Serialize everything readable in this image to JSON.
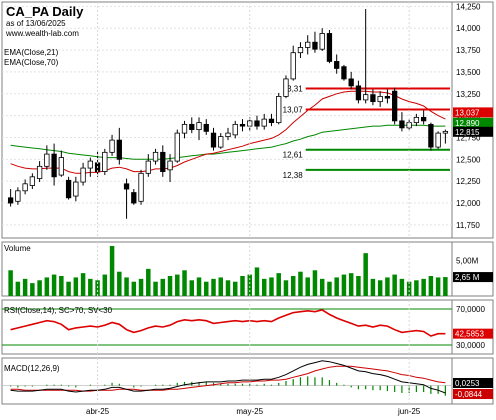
{
  "window": {
    "title": "CA_PA Daily",
    "subtitle": "as of 13/06/2025",
    "website": "www.wealth-lab.com",
    "legend": [
      "EMA(Close,21)",
      "EMA(Close,70)"
    ]
  },
  "colors": {
    "up_candle": "#ffffff",
    "down_candle": "#000000",
    "ema21": "#cc0000",
    "ema70": "#008800",
    "resistance": "#dd0000",
    "support": "#008800",
    "volume": "#008800",
    "rsi": "#dd0000",
    "macd": "#000000",
    "macd_signal": "#cc0000",
    "macd_hist": "#008800",
    "last_price_tag": "#000000"
  },
  "chart_data": [
    {
      "type": "candlestick",
      "title": "CA_PA Daily",
      "ylim": [
        11.6,
        14.3
      ],
      "y_ticks": [
        "14,250",
        "14,000",
        "13,750",
        "13,500",
        "13,250",
        "13,000",
        "12,750",
        "12,500",
        "12,250",
        "12,000",
        "11,750"
      ],
      "y_tick_values": [
        14.25,
        14.0,
        13.75,
        13.5,
        13.25,
        13.0,
        12.75,
        12.5,
        12.25,
        12.0,
        11.75
      ],
      "x_labels": [
        "abr-25",
        "may-25",
        "jun-25"
      ],
      "x_label_bar_index": [
        12,
        33,
        55
      ],
      "candles": [
        {
          "o": 12.06,
          "h": 12.16,
          "l": 11.96,
          "c": 12.0
        },
        {
          "o": 12.02,
          "h": 12.18,
          "l": 11.98,
          "c": 12.14
        },
        {
          "o": 12.14,
          "h": 12.27,
          "l": 12.1,
          "c": 12.22
        },
        {
          "o": 12.2,
          "h": 12.34,
          "l": 12.16,
          "c": 12.3
        },
        {
          "o": 12.28,
          "h": 12.48,
          "l": 12.24,
          "c": 12.42
        },
        {
          "o": 12.42,
          "h": 12.66,
          "l": 12.38,
          "c": 12.56
        },
        {
          "o": 12.56,
          "h": 12.68,
          "l": 12.2,
          "c": 12.3
        },
        {
          "o": 12.32,
          "h": 12.6,
          "l": 12.3,
          "c": 12.52
        },
        {
          "o": 12.26,
          "h": 12.3,
          "l": 12.04,
          "c": 12.06
        },
        {
          "o": 12.08,
          "h": 12.3,
          "l": 12.02,
          "c": 12.24
        },
        {
          "o": 12.24,
          "h": 12.46,
          "l": 12.2,
          "c": 12.4
        },
        {
          "o": 12.4,
          "h": 12.52,
          "l": 12.3,
          "c": 12.48
        },
        {
          "o": 12.46,
          "h": 12.6,
          "l": 12.3,
          "c": 12.36
        },
        {
          "o": 12.36,
          "h": 12.62,
          "l": 12.32,
          "c": 12.58
        },
        {
          "o": 12.58,
          "h": 12.78,
          "l": 12.54,
          "c": 12.72
        },
        {
          "o": 12.72,
          "h": 12.86,
          "l": 12.44,
          "c": 12.5
        },
        {
          "o": 12.22,
          "h": 12.28,
          "l": 11.82,
          "c": 12.16
        },
        {
          "o": 12.12,
          "h": 12.16,
          "l": 11.98,
          "c": 12.0
        },
        {
          "o": 12.02,
          "h": 12.38,
          "l": 11.98,
          "c": 12.34
        },
        {
          "o": 12.34,
          "h": 12.56,
          "l": 12.3,
          "c": 12.48
        },
        {
          "o": 12.48,
          "h": 12.62,
          "l": 12.44,
          "c": 12.58
        },
        {
          "o": 12.58,
          "h": 12.66,
          "l": 12.3,
          "c": 12.36
        },
        {
          "o": 12.38,
          "h": 12.56,
          "l": 12.24,
          "c": 12.48
        },
        {
          "o": 12.48,
          "h": 12.84,
          "l": 12.46,
          "c": 12.8
        },
        {
          "o": 12.8,
          "h": 12.94,
          "l": 12.74,
          "c": 12.9
        },
        {
          "o": 12.9,
          "h": 12.98,
          "l": 12.8,
          "c": 12.84
        },
        {
          "o": 12.84,
          "h": 12.98,
          "l": 12.72,
          "c": 12.92
        },
        {
          "o": 12.9,
          "h": 12.96,
          "l": 12.78,
          "c": 12.82
        },
        {
          "o": 12.8,
          "h": 12.86,
          "l": 12.6,
          "c": 12.64
        },
        {
          "o": 12.64,
          "h": 12.8,
          "l": 12.62,
          "c": 12.76
        },
        {
          "o": 12.76,
          "h": 12.86,
          "l": 12.72,
          "c": 12.8
        },
        {
          "o": 12.78,
          "h": 12.94,
          "l": 12.74,
          "c": 12.9
        },
        {
          "o": 12.9,
          "h": 12.96,
          "l": 12.82,
          "c": 12.88
        },
        {
          "o": 12.88,
          "h": 12.98,
          "l": 12.82,
          "c": 12.94
        },
        {
          "o": 12.94,
          "h": 13.0,
          "l": 12.84,
          "c": 12.88
        },
        {
          "o": 12.88,
          "h": 13.02,
          "l": 12.84,
          "c": 12.96
        },
        {
          "o": 12.96,
          "h": 13.02,
          "l": 12.88,
          "c": 12.92
        },
        {
          "o": 12.92,
          "h": 13.26,
          "l": 12.9,
          "c": 13.22
        },
        {
          "o": 13.22,
          "h": 13.46,
          "l": 13.2,
          "c": 13.42
        },
        {
          "o": 13.42,
          "h": 13.8,
          "l": 13.4,
          "c": 13.72
        },
        {
          "o": 13.72,
          "h": 13.84,
          "l": 13.66,
          "c": 13.78
        },
        {
          "o": 13.78,
          "h": 13.92,
          "l": 13.7,
          "c": 13.84
        },
        {
          "o": 13.84,
          "h": 13.96,
          "l": 13.72,
          "c": 13.76
        },
        {
          "o": 13.76,
          "h": 14.0,
          "l": 13.74,
          "c": 13.94
        },
        {
          "o": 13.94,
          "h": 13.98,
          "l": 13.6,
          "c": 13.62
        },
        {
          "o": 13.62,
          "h": 13.7,
          "l": 13.48,
          "c": 13.54
        },
        {
          "o": 13.56,
          "h": 13.58,
          "l": 13.4,
          "c": 13.42
        },
        {
          "o": 13.42,
          "h": 13.5,
          "l": 13.3,
          "c": 13.34
        },
        {
          "o": 13.34,
          "h": 13.4,
          "l": 13.14,
          "c": 13.18
        },
        {
          "o": 13.18,
          "h": 14.22,
          "l": 13.14,
          "c": 13.24
        },
        {
          "o": 13.24,
          "h": 13.3,
          "l": 13.12,
          "c": 13.16
        },
        {
          "o": 13.16,
          "h": 13.28,
          "l": 13.1,
          "c": 13.22
        },
        {
          "o": 13.22,
          "h": 13.3,
          "l": 13.14,
          "c": 13.2
        },
        {
          "o": 13.28,
          "h": 13.32,
          "l": 12.9,
          "c": 12.94
        },
        {
          "o": 12.94,
          "h": 13.04,
          "l": 12.82,
          "c": 12.86
        },
        {
          "o": 12.86,
          "h": 12.96,
          "l": 12.84,
          "c": 12.92
        },
        {
          "o": 12.92,
          "h": 13.02,
          "l": 12.88,
          "c": 12.98
        },
        {
          "o": 12.98,
          "h": 13.06,
          "l": 12.9,
          "c": 12.94
        },
        {
          "o": 12.9,
          "h": 12.92,
          "l": 12.6,
          "c": 12.64
        },
        {
          "o": 12.64,
          "h": 12.82,
          "l": 12.62,
          "c": 12.8
        },
        {
          "o": 12.8,
          "h": 12.84,
          "l": 12.68,
          "c": 12.82
        }
      ],
      "ema21": [
        12.45,
        12.42,
        12.4,
        12.39,
        12.39,
        12.4,
        12.4,
        12.4,
        12.36,
        12.34,
        12.34,
        12.35,
        12.35,
        12.37,
        12.4,
        12.41,
        12.39,
        12.36,
        12.36,
        12.37,
        12.39,
        12.39,
        12.4,
        12.43,
        12.47,
        12.5,
        12.53,
        12.56,
        12.57,
        12.59,
        12.61,
        12.63,
        12.65,
        12.68,
        12.7,
        12.72,
        12.74,
        12.78,
        12.84,
        12.92,
        12.99,
        13.06,
        13.12,
        13.19,
        13.22,
        13.25,
        13.27,
        13.28,
        13.28,
        13.28,
        13.27,
        13.27,
        13.26,
        13.23,
        13.19,
        13.16,
        13.14,
        13.11,
        13.05,
        13.0,
        12.96
      ],
      "ema70": [
        12.66,
        12.65,
        12.64,
        12.63,
        12.62,
        12.61,
        12.6,
        12.59,
        12.57,
        12.56,
        12.55,
        12.54,
        12.53,
        12.52,
        12.52,
        12.52,
        12.51,
        12.5,
        12.5,
        12.5,
        12.5,
        12.5,
        12.51,
        12.52,
        12.53,
        12.54,
        12.55,
        12.56,
        12.56,
        12.57,
        12.58,
        12.59,
        12.6,
        12.61,
        12.62,
        12.63,
        12.64,
        12.66,
        12.68,
        12.71,
        12.73,
        12.76,
        12.78,
        12.81,
        12.82,
        12.83,
        12.84,
        12.85,
        12.86,
        12.87,
        12.88,
        12.88,
        12.89,
        12.89,
        12.89,
        12.89,
        12.89,
        12.89,
        12.88,
        12.88,
        12.88
      ],
      "resistance_levels": [
        {
          "label": "13,31",
          "value": 13.31,
          "start_bar": 41
        },
        {
          "label": "13,07",
          "value": 13.07,
          "start_bar": 41
        }
      ],
      "support_levels": [
        {
          "label": "12,61",
          "value": 12.61,
          "start_bar": 41
        },
        {
          "label": "12,38",
          "value": 12.38,
          "start_bar": 41
        }
      ],
      "right_tags": [
        {
          "label": "13,037",
          "value": 13.037,
          "bg": "#dd0000",
          "fg": "#ffffff"
        },
        {
          "label": "12,890",
          "value": 12.89,
          "bg": "#008800",
          "fg": "#ffffff"
        },
        {
          "label": "12,815",
          "value": 12.815,
          "bg": "#000000",
          "fg": "#ffffff"
        }
      ]
    },
    {
      "type": "bar",
      "title": "Volume",
      "ylim": [
        0,
        7.0
      ],
      "y_ticks": [
        "5,00M"
      ],
      "y_tick_values": [
        5.0
      ],
      "last_label": "2,65 M",
      "values": [
        3.6,
        2.0,
        2.4,
        1.8,
        2.2,
        2.6,
        3.0,
        2.8,
        2.0,
        2.6,
        3.2,
        2.4,
        2.2,
        3.0,
        7.0,
        3.4,
        2.6,
        2.0,
        2.4,
        3.8,
        2.0,
        2.4,
        2.8,
        3.0,
        3.6,
        2.2,
        2.6,
        2.0,
        2.4,
        2.6,
        2.2,
        2.0,
        2.8,
        3.0,
        4.0,
        2.4,
        2.6,
        3.2,
        2.2,
        2.8,
        3.4,
        2.6,
        3.6,
        2.4,
        2.0,
        2.6,
        3.0,
        3.2,
        2.8,
        6.0,
        2.4,
        2.2,
        2.6,
        3.0,
        2.4,
        2.0,
        2.2,
        2.4,
        2.8,
        2.6,
        2.65
      ]
    },
    {
      "type": "line",
      "title": "RSI(Close,14), SC>70, SV<30",
      "ylim": [
        20,
        80
      ],
      "y_ticks": [
        "70,0000",
        "30,0000"
      ],
      "y_tick_values": [
        70,
        30
      ],
      "last_label": "42,5853",
      "values": [
        47,
        49,
        51,
        53,
        55,
        57,
        56,
        53,
        47,
        49,
        50,
        51,
        50,
        52,
        55,
        53,
        47,
        44,
        46,
        49,
        51,
        50,
        52,
        56,
        58,
        57,
        58,
        57,
        54,
        55,
        56,
        57,
        56,
        57,
        56,
        57,
        56,
        60,
        63,
        66,
        67,
        68,
        67,
        69,
        64,
        60,
        57,
        54,
        51,
        52,
        50,
        52,
        51,
        47,
        44,
        45,
        46,
        45,
        40,
        42.6,
        42.6
      ]
    },
    {
      "type": "line",
      "title": "MACD(12,26,9)",
      "ylim": [
        -0.2,
        0.3
      ],
      "last_labels": [
        "0,0253",
        "-0,0844"
      ],
      "macd": [
        -0.05,
        -0.06,
        -0.06,
        -0.06,
        -0.05,
        -0.04,
        -0.04,
        -0.04,
        -0.06,
        -0.07,
        -0.06,
        -0.05,
        -0.05,
        -0.04,
        -0.02,
        -0.02,
        -0.04,
        -0.06,
        -0.06,
        -0.05,
        -0.04,
        -0.04,
        -0.03,
        -0.01,
        0.01,
        0.02,
        0.03,
        0.04,
        0.04,
        0.04,
        0.05,
        0.05,
        0.06,
        0.06,
        0.06,
        0.07,
        0.07,
        0.09,
        0.12,
        0.16,
        0.2,
        0.23,
        0.25,
        0.27,
        0.26,
        0.24,
        0.22,
        0.19,
        0.16,
        0.15,
        0.13,
        0.12,
        0.1,
        0.07,
        0.04,
        0.03,
        0.02,
        0.01,
        -0.03,
        -0.05,
        -0.08
      ],
      "signal": [
        -0.04,
        -0.04,
        -0.05,
        -0.05,
        -0.05,
        -0.05,
        -0.05,
        -0.05,
        -0.05,
        -0.05,
        -0.06,
        -0.06,
        -0.05,
        -0.05,
        -0.05,
        -0.04,
        -0.04,
        -0.04,
        -0.05,
        -0.05,
        -0.05,
        -0.05,
        -0.04,
        -0.04,
        -0.03,
        -0.02,
        -0.01,
        0.0,
        0.01,
        0.02,
        0.03,
        0.03,
        0.04,
        0.04,
        0.05,
        0.05,
        0.06,
        0.06,
        0.07,
        0.09,
        0.11,
        0.13,
        0.16,
        0.18,
        0.2,
        0.21,
        0.21,
        0.21,
        0.2,
        0.19,
        0.18,
        0.17,
        0.16,
        0.14,
        0.12,
        0.11,
        0.09,
        0.08,
        0.06,
        0.04,
        0.03
      ]
    }
  ]
}
